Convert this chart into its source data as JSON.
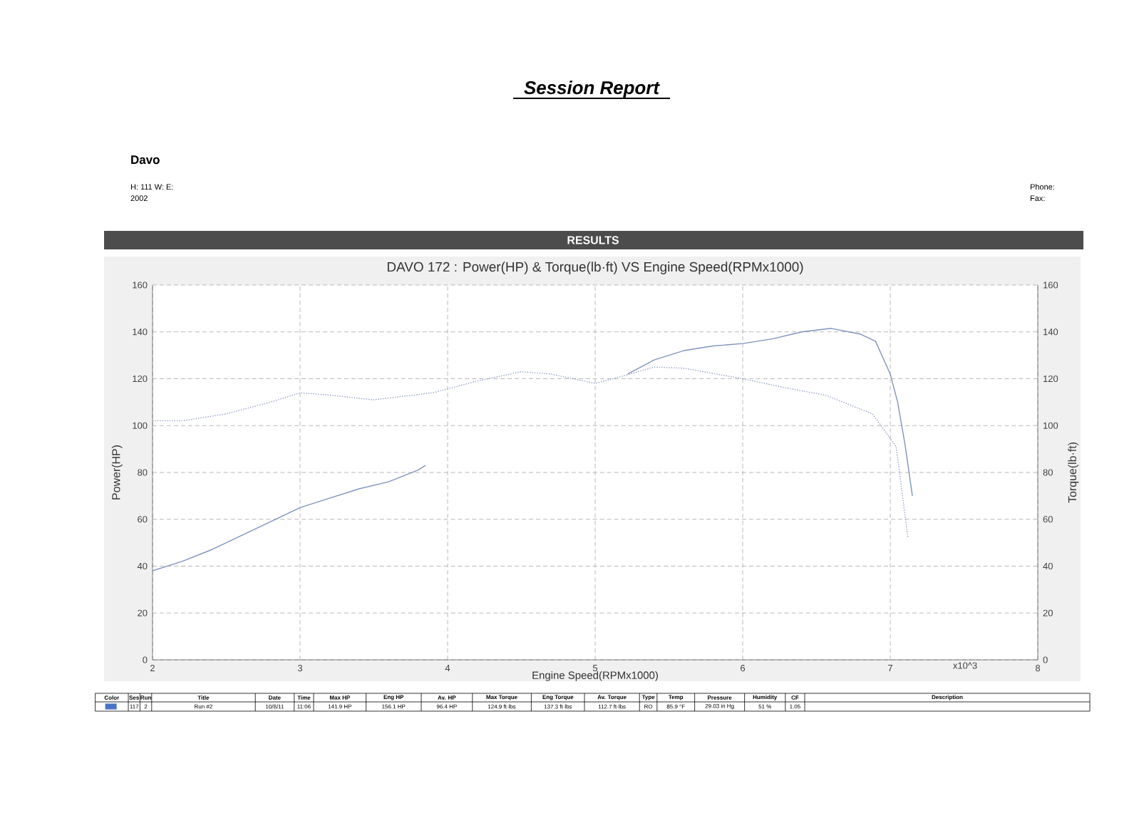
{
  "chart_data": {
    "type": "line",
    "title": "DAVO 172 : Power(HP) & Torque(lb·ft) VS Engine Speed(RPMx1000)",
    "xlabel": "Engine Speed(RPMx1000)",
    "ylabel": "Power(HP)",
    "y2label": "Torque(lb·ft)",
    "xlim": [
      2,
      8
    ],
    "xticks": [
      2,
      3,
      4,
      5,
      6,
      7,
      8
    ],
    "ylim": [
      0,
      160
    ],
    "yticks": [
      0,
      20,
      40,
      60,
      80,
      100,
      120,
      140,
      160
    ],
    "y2lim": [
      0,
      160
    ],
    "y2ticks": [
      0,
      20,
      40,
      60,
      80,
      100,
      120,
      140,
      160
    ],
    "grid": true,
    "series": [
      {
        "color": "#7f93bd",
        "line_style": "solid",
        "x": [
          2.0,
          2.2,
          2.4,
          2.6,
          2.8,
          3.0,
          3.2,
          3.4,
          3.6,
          3.8,
          3.85,
          4.5,
          5.22,
          5.4,
          5.6,
          5.8,
          6.0,
          6.2,
          6.4,
          6.6,
          6.8,
          6.9,
          7.0,
          7.05,
          7.1,
          7.15
        ],
        "values": [
          38,
          42,
          47,
          53,
          59,
          65,
          69,
          73,
          76,
          81,
          83,
          null,
          122,
          128,
          132,
          134,
          135,
          137,
          140,
          141.5,
          139,
          136,
          122,
          110,
          92,
          70
        ]
      },
      {
        "color": "#8f9dc4",
        "line_style": "dotted",
        "axis": "y2",
        "x": [
          2.0,
          2.2,
          2.5,
          2.8,
          3.0,
          3.2,
          3.5,
          3.9,
          4.2,
          4.5,
          4.7,
          5.0,
          5.22,
          5.4,
          5.6,
          6.0,
          6.3,
          6.56,
          6.88,
          7.04,
          7.12
        ],
        "values": [
          102,
          102,
          105,
          110,
          114,
          113,
          111,
          114,
          119,
          123,
          122,
          118,
          121.7,
          125,
          124.5,
          120,
          116,
          113,
          105,
          91,
          52
        ]
      }
    ],
    "annotations": [
      "Session Report",
      "Davo",
      "H: 111    W:      E:",
      "2002",
      "Phone:",
      "Fax:",
      "RESULTS",
      "x10^3",
      "Color",
      "Ses",
      "Run",
      "Title",
      "Date",
      "Time",
      "Max HP",
      "Eng HP",
      "Av. HP",
      "Max Torque",
      "Eng Torque",
      "Av. Torque",
      "Type",
      "Temp",
      "Pressure",
      "Humidity",
      "CF",
      "Description",
      "117",
      "2",
      "Run #2",
      "10/8/11",
      "11:06",
      "141.9 HP",
      "156.1 HP",
      "96.4 HP",
      "124.9 ft·lbs",
      "137.3 ft·lbs",
      "112.7 ft·lbs",
      "RO",
      "85.9 °F",
      "29.03 in Hg",
      "51 %",
      "1.05"
    ]
  }
}
